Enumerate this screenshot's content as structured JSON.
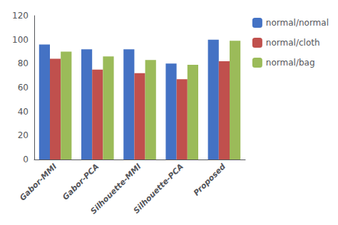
{
  "chart_data": {
    "type": "bar",
    "categories": [
      "Gabor-MMI",
      "Gabor-PCA",
      "Silhouette-MMI",
      "Silhouette-PCA",
      "Proposed"
    ],
    "series": [
      {
        "name": "normal/normal",
        "color": "#4472C4",
        "values": [
          96,
          92,
          92,
          80,
          100
        ]
      },
      {
        "name": "normal/cloth",
        "color": "#C0504D",
        "values": [
          84,
          75,
          72,
          67,
          82
        ]
      },
      {
        "name": "normal/bag",
        "color": "#9BBB59",
        "values": [
          90,
          86,
          83,
          79,
          99
        ]
      }
    ],
    "ylim": [
      0,
      120
    ],
    "yticks": [
      0,
      20,
      40,
      60,
      80,
      100,
      120
    ],
    "grid": false,
    "legend": "upper right"
  }
}
